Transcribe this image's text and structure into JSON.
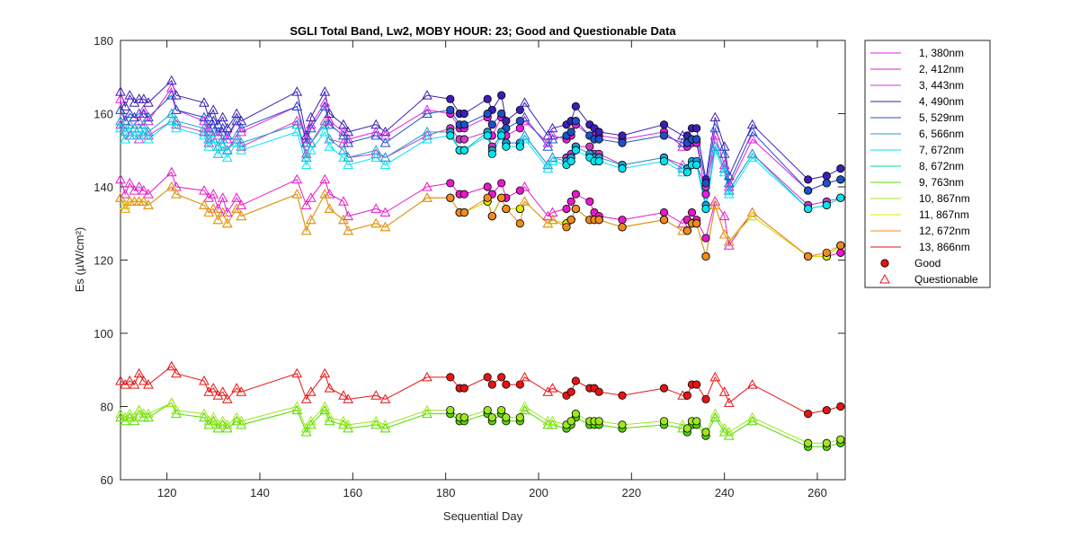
{
  "chart_data": {
    "type": "line",
    "title": "SGLI Total Band,  Lw2, MOBY HOUR: 23;  Good and Questionable Data",
    "xlabel": "Sequential Day",
    "ylabel": "Es (µW/cm²)",
    "xlim": [
      110,
      266
    ],
    "ylim": [
      60,
      180
    ],
    "xticks": [
      120,
      140,
      160,
      180,
      200,
      220,
      240,
      260
    ],
    "yticks": [
      60,
      80,
      100,
      120,
      140,
      160,
      180
    ],
    "grid": false,
    "legend_position": "outside-right",
    "x": [
      110,
      111,
      112,
      113,
      114,
      115,
      116,
      121,
      122,
      128,
      129,
      130,
      131,
      132,
      133,
      135,
      136,
      148,
      150,
      151,
      154,
      155,
      158,
      159,
      165,
      167,
      176,
      181,
      183,
      184,
      189,
      190,
      192,
      193,
      196,
      197,
      202,
      203,
      206,
      207,
      208,
      211,
      212,
      213,
      218,
      227,
      231,
      232,
      233,
      234,
      236,
      238,
      240,
      241,
      246,
      258,
      262,
      265
    ],
    "quality": [
      "Q",
      "Q",
      "Q",
      "Q",
      "Q",
      "Q",
      "Q",
      "Q",
      "Q",
      "Q",
      "Q",
      "Q",
      "Q",
      "Q",
      "Q",
      "Q",
      "Q",
      "Q",
      "Q",
      "Q",
      "Q",
      "Q",
      "Q",
      "Q",
      "Q",
      "Q",
      "Q",
      "G",
      "G",
      "G",
      "G",
      "G",
      "G",
      "G",
      "G",
      "Q",
      "Q",
      "Q",
      "G",
      "G",
      "G",
      "G",
      "G",
      "G",
      "G",
      "G",
      "Q",
      "G",
      "G",
      "G",
      "G",
      "Q",
      "Q",
      "Q",
      "Q",
      "G",
      "G",
      "G"
    ],
    "series": [
      {
        "name": "1, 380nm",
        "color": "#e61ee6",
        "values": [
          164,
          158,
          160,
          159,
          158,
          161,
          158,
          167,
          161,
          158,
          155,
          158,
          154,
          156,
          153,
          158,
          155,
          162,
          153,
          157,
          163,
          158,
          155,
          153,
          155,
          154,
          161,
          160,
          156,
          156,
          159,
          154,
          159,
          154,
          156,
          158,
          152,
          154,
          153,
          154,
          157,
          154,
          154,
          154,
          153,
          155,
          151,
          151,
          152,
          152,
          138,
          154,
          146,
          140,
          153,
          139,
          141,
          142
        ]
      },
      {
        "name": "2, 412nm",
        "color": "#e619c8",
        "values": [
          142,
          138,
          141,
          139,
          140,
          139,
          138,
          144,
          140,
          139,
          137,
          138,
          134,
          137,
          133,
          137,
          135,
          142,
          135,
          137,
          142,
          138,
          136,
          132,
          134,
          133,
          140,
          141,
          138,
          138,
          140,
          138,
          141,
          137,
          139,
          140,
          132,
          133,
          134,
          136,
          138,
          136,
          133,
          132,
          131,
          133,
          130,
          131,
          133,
          131,
          126,
          136,
          132,
          124,
          133,
          121,
          121,
          122
        ]
      },
      {
        "name": "3, 443nm",
        "color": "#c83cc8",
        "values": [
          157,
          153,
          154,
          154,
          153,
          155,
          154,
          158,
          157,
          155,
          152,
          153,
          149,
          151,
          150,
          153,
          151,
          158,
          149,
          152,
          158,
          153,
          152,
          148,
          149,
          148,
          154,
          156,
          153,
          153,
          155,
          151,
          154,
          152,
          152,
          154,
          146,
          148,
          148,
          149,
          151,
          151,
          149,
          149,
          146,
          148,
          146,
          145,
          146,
          146,
          140,
          151,
          145,
          139,
          149,
          135,
          136,
          137
        ]
      },
      {
        "name": "4, 490nm",
        "color": "#3c1eb4",
        "values": [
          166,
          162,
          165,
          163,
          164,
          164,
          163,
          169,
          165,
          163,
          159,
          161,
          157,
          159,
          156,
          160,
          158,
          166,
          154,
          159,
          166,
          160,
          157,
          155,
          157,
          155,
          165,
          164,
          160,
          160,
          164,
          161,
          165,
          158,
          161,
          163,
          154,
          156,
          157,
          158,
          162,
          157,
          156,
          155,
          154,
          157,
          154,
          154,
          156,
          156,
          142,
          159,
          151,
          143,
          157,
          142,
          143,
          145
        ]
      },
      {
        "name": "5, 529nm",
        "color": "#1e50c8",
        "values": [
          161,
          158,
          160,
          159,
          160,
          160,
          159,
          165,
          161,
          159,
          156,
          158,
          155,
          156,
          154,
          158,
          156,
          162,
          152,
          156,
          162,
          157,
          154,
          152,
          154,
          152,
          160,
          161,
          157,
          157,
          160,
          157,
          160,
          156,
          158,
          159,
          151,
          153,
          154,
          155,
          158,
          154,
          153,
          153,
          152,
          154,
          152,
          152,
          153,
          153,
          141,
          156,
          149,
          141,
          155,
          139,
          141,
          142
        ]
      },
      {
        "name": "6, 566nm",
        "color": "#1ea0d2",
        "values": [
          158,
          155,
          157,
          156,
          156,
          157,
          155,
          160,
          158,
          156,
          153,
          155,
          151,
          153,
          150,
          154,
          152,
          157,
          148,
          152,
          157,
          153,
          150,
          148,
          150,
          148,
          155,
          155,
          150,
          150,
          155,
          150,
          155,
          152,
          152,
          154,
          146,
          148,
          147,
          148,
          151,
          149,
          148,
          148,
          146,
          148,
          145,
          145,
          147,
          147,
          135,
          151,
          145,
          139,
          149,
          134,
          135,
          137
        ]
      },
      {
        "name": "7, 672nm",
        "color": "#00e6f0",
        "values": [
          156,
          153,
          155,
          154,
          154,
          155,
          153,
          158,
          156,
          154,
          151,
          153,
          149,
          151,
          148,
          152,
          150,
          155,
          146,
          150,
          155,
          151,
          148,
          146,
          148,
          146,
          153,
          154,
          150,
          150,
          154,
          149,
          154,
          151,
          151,
          153,
          145,
          147,
          146,
          147,
          150,
          148,
          147,
          147,
          145,
          147,
          144,
          144,
          146,
          146,
          134,
          150,
          144,
          138,
          148,
          134,
          135,
          137
        ]
      },
      {
        "name": "8, 672nm",
        "color": "#00dc8c",
        "values": [
          137,
          135,
          136,
          136,
          136,
          136,
          135,
          140,
          138,
          135,
          133,
          134,
          131,
          133,
          130,
          134,
          132,
          138,
          128,
          131,
          138,
          134,
          131,
          128,
          130,
          129,
          137,
          137,
          133,
          133,
          136,
          132,
          137,
          134,
          134,
          136,
          130,
          131,
          130,
          131,
          134,
          131,
          131,
          131,
          129,
          131,
          128,
          128,
          130,
          130,
          121,
          135,
          127,
          125,
          132,
          121,
          121,
          124
        ]
      },
      {
        "name": "9, 763nm",
        "color": "#50dc00",
        "values": [
          77,
          76,
          77,
          76,
          79,
          77,
          77,
          81,
          78,
          77,
          75,
          76,
          74,
          75,
          74,
          76,
          75,
          79,
          73,
          75,
          79,
          76,
          75,
          74,
          75,
          74,
          78,
          78,
          76,
          76,
          78,
          76,
          78,
          76,
          76,
          79,
          75,
          75,
          74,
          75,
          77,
          75,
          75,
          75,
          74,
          75,
          74,
          73,
          75,
          75,
          72,
          77,
          73,
          72,
          76,
          69,
          69,
          70
        ]
      },
      {
        "name": "10, 867nm",
        "color": "#a0e61e",
        "values": [
          78,
          77,
          78,
          77,
          79,
          78,
          78,
          81,
          79,
          78,
          76,
          77,
          75,
          76,
          75,
          77,
          76,
          80,
          74,
          76,
          80,
          77,
          76,
          75,
          76,
          75,
          79,
          79,
          77,
          77,
          79,
          77,
          79,
          77,
          77,
          80,
          76,
          76,
          75,
          76,
          78,
          76,
          76,
          76,
          75,
          76,
          75,
          74,
          76,
          76,
          73,
          78,
          74,
          73,
          77,
          70,
          70,
          71
        ]
      },
      {
        "name": "11, 867nm",
        "color": "#e6e600",
        "values": [
          137,
          135,
          136,
          136,
          136,
          136,
          135,
          140,
          138,
          135,
          133,
          134,
          131,
          133,
          130,
          134,
          132,
          138,
          128,
          131,
          138,
          134,
          131,
          128,
          130,
          129,
          137,
          137,
          133,
          133,
          136,
          132,
          137,
          134,
          134,
          136,
          130,
          131,
          130,
          131,
          134,
          131,
          131,
          131,
          129,
          131,
          128,
          128,
          130,
          130,
          121,
          135,
          127,
          125,
          132,
          121,
          121,
          124
        ]
      },
      {
        "name": "12, 672nm",
        "color": "#f08c1e",
        "values": [
          137,
          134,
          136,
          136,
          136,
          136,
          135,
          140,
          138,
          135,
          133,
          134,
          131,
          133,
          130,
          134,
          132,
          138,
          128,
          131,
          138,
          134,
          131,
          128,
          130,
          129,
          137,
          137,
          133,
          133,
          137,
          132,
          137,
          134,
          130,
          136,
          130,
          131,
          129,
          131,
          134,
          131,
          131,
          131,
          129,
          131,
          128,
          128,
          130,
          130,
          121,
          135,
          127,
          125,
          133,
          121,
          122,
          124
        ]
      },
      {
        "name": "13, 866nm",
        "color": "#e61414",
        "values": [
          87,
          86,
          87,
          86,
          89,
          87,
          86,
          91,
          89,
          87,
          84,
          85,
          83,
          84,
          82,
          85,
          84,
          89,
          82,
          84,
          89,
          85,
          83,
          82,
          83,
          82,
          88,
          88,
          85,
          85,
          88,
          86,
          88,
          86,
          86,
          88,
          84,
          85,
          83,
          84,
          87,
          85,
          85,
          84,
          83,
          85,
          83,
          83,
          86,
          86,
          82,
          88,
          84,
          81,
          86,
          78,
          79,
          80
        ]
      }
    ],
    "legend_entries": [
      "1, 380nm",
      "2, 412nm",
      "3, 443nm",
      "4, 490nm",
      "5, 529nm",
      "6, 566nm",
      "7, 672nm",
      "8, 672nm",
      "9, 763nm",
      "10, 867nm",
      "11, 867nm",
      "12, 672nm",
      "13, 866nm",
      "Good",
      "Questionable"
    ]
  }
}
